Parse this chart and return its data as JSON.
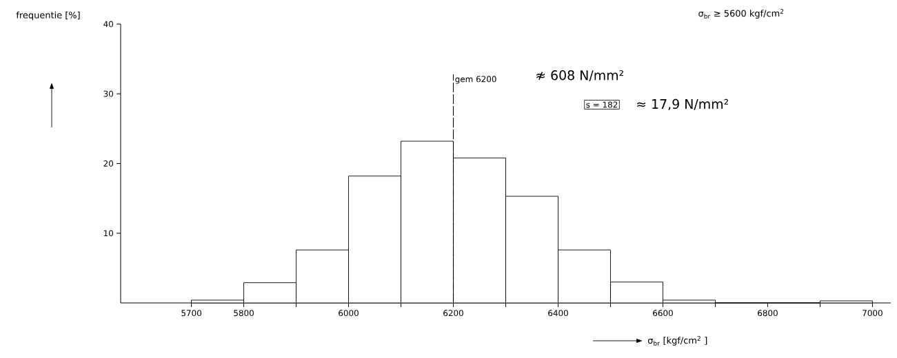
{
  "chart_data": {
    "type": "histogram",
    "xlabel": "σ$_{br}$ [kgf/cm$^{2}$ ]",
    "ylabel": "frequentie [%]",
    "bins": [
      5700,
      5800,
      5900,
      6000,
      6100,
      6200,
      6300,
      6400,
      6500,
      6600,
      6700,
      6800,
      6900,
      7000
    ],
    "values": [
      0.4,
      2.9,
      7.6,
      18.2,
      23.2,
      20.8,
      15.3,
      7.6,
      3.0,
      0.4,
      0,
      0,
      0.3
    ],
    "color": "#ffffff",
    "xlim": [
      5565,
      7035
    ],
    "ylim": [
      0,
      40
    ],
    "xticks": [
      5700,
      5800,
      {
        "value": 5900,
        "label": null
      },
      6000,
      {
        "value": 6100,
        "label": null
      },
      6200,
      {
        "value": 6300,
        "label": null
      },
      6400,
      {
        "value": 6500,
        "label": null
      },
      6600,
      {
        "value": 6700,
        "label": null
      },
      6800,
      {
        "value": 6900,
        "label": null
      },
      7000
    ],
    "yticks": [
      10,
      20,
      30,
      40
    ],
    "ref_lines": [
      {
        "axis": "x",
        "value": 6200,
        "label": "gem 6200",
        "line_style": "dashed",
        "color": "#000000"
      }
    ],
    "annotations": [
      "σ$_{br}$ ≥ 5600 kgf/cm$^{2}$",
      "≉ 608 N/mm²",
      "s = 182",
      "≈ 17,9 N/mm²"
    ]
  }
}
